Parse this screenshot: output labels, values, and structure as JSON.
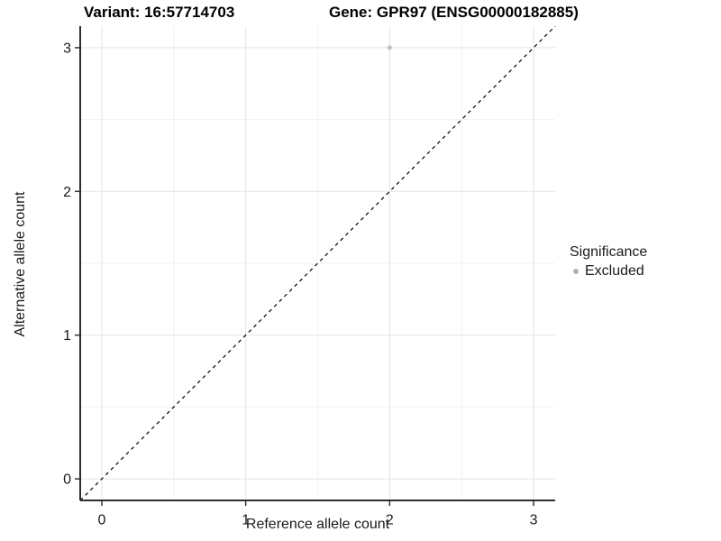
{
  "chart_data": {
    "type": "scatter",
    "title_left": "Variant: 16:57714703",
    "title_right": "Gene: GPR97 (ENSG00000182885)",
    "xlabel": "Reference allele count",
    "ylabel": "Alternative allele count",
    "xlim": [
      -0.15,
      3.15
    ],
    "ylim": [
      -0.15,
      3.15
    ],
    "xticks": [
      0,
      1,
      2,
      3
    ],
    "yticks": [
      0,
      1,
      2,
      3
    ],
    "minor_ticks": [
      0.5,
      1.5,
      2.5
    ],
    "grid": true,
    "legend_position": "right",
    "series": [
      {
        "name": "Excluded",
        "color": "#c2c2c2",
        "points": [
          {
            "x": 2,
            "y": 3
          }
        ]
      }
    ],
    "reference_line": {
      "type": "identity",
      "style": "dashed",
      "color": "#000000"
    },
    "legend": {
      "title": "Significance",
      "items": [
        {
          "label": "Excluded",
          "color": "#b3b3b3"
        }
      ]
    }
  },
  "colors": {
    "background": "#ffffff",
    "grid_major": "#e4e4e4",
    "grid_minor": "#f2f2f2",
    "axis_line": "#2e2e2e",
    "tick_mark": "#333333",
    "tick_label": "#1a1a1a"
  }
}
